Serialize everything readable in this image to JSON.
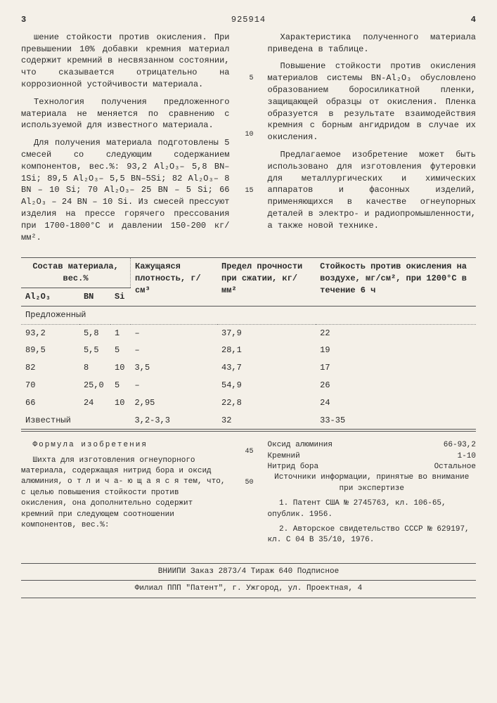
{
  "header": {
    "page_left": "3",
    "doc_number": "925914",
    "page_right": "4"
  },
  "left_column": {
    "p1": "шение стойкости против окисления. При превышении 10% добавки кремния материал содержит кремний в несвязанном состоянии, что сказывается отрицательно на коррозионной устойчивости материала.",
    "p2": "Технология получения предложенного материала не меняется по сравнению с используемой для известного материала.",
    "p3": "Для получения материала подготовлены 5 смесей со следующим содержанием компонентов, вес.%: 93,2 Al₂O₃– 5,8 BN–1Si; 89,5 Al₂O₃– 5,5 BN–5Si; 82 Al₂O₃– 8 BN – 10 Si; 70 Al₂O₃– 25 BN – 5 Si; 66 Al₂O₃ – 24 BN – 10 Si. Из смесей прессуют изделия на прессе горячего прессования при 1700-1800°С и давлении 150-200 кг/мм²."
  },
  "right_column": {
    "p1": "Характеристика полученного материала приведена в таблице.",
    "p2": "Повышение стойкости против окисления материалов системы BN-Al₂O₃ обусловлено образованием боросиликатной пленки, защищающей образцы от окисления. Пленка образуется в результате взаимодействия кремния с борным ангидридом в случае их окисления.",
    "p3": "Предлагаемое изобретение может быть использовано для изготовления футеровки для металлургических и химических аппаратов и фасонных изделий, применяющихся в качестве огнеупорных деталей в электро- и радиопромышленности, а также новой технике."
  },
  "line_markers": [
    "5",
    "10",
    "15"
  ],
  "table": {
    "headers": {
      "comp": "Состав материала, вес.%",
      "c1": "Al₂O₃",
      "c2": "BN",
      "c3": "Si",
      "density": "Кажущаяся плотность, г/см³",
      "strength": "Предел прочности при сжатии, кг/мм²",
      "oxid": "Стойкость против окисления на воздухе, мг/см², при 1200°С в течение 6 ч"
    },
    "section1": "Предложенный",
    "rows": [
      {
        "al": "93,2",
        "bn": "5,8",
        "si": "1",
        "d": "–",
        "s": "37,9",
        "o": "22"
      },
      {
        "al": "89,5",
        "bn": "5,5",
        "si": "5",
        "d": "–",
        "s": "28,1",
        "o": "19"
      },
      {
        "al": "82",
        "bn": "8",
        "si": "10",
        "d": "3,5",
        "s": "43,7",
        "o": "17"
      },
      {
        "al": "70",
        "bn": "25,0",
        "si": "5",
        "d": "–",
        "s": "54,9",
        "o": "26"
      },
      {
        "al": "66",
        "bn": "24",
        "si": "10",
        "d": "2,95",
        "s": "22,8",
        "o": "24"
      }
    ],
    "section2": "Известный",
    "known": {
      "al": "",
      "bn": "",
      "si": "",
      "d": "3,2-3,3",
      "s": "32",
      "o": "33-35"
    }
  },
  "formula": {
    "title": "Формула изобретения",
    "text": "Шихта для изготовления огнеупорного материала, содержащая нитрид бора и оксид алюминия, о т л и ч а- ю щ а я с я  тем, что, с целью повышения стойкости против окисления, она дополнительно содержит кремний при следующем соотношении компонентов, вес.%:",
    "components": [
      {
        "name": "Оксид алюминия",
        "val": "66-93,2"
      },
      {
        "name": "Кремний",
        "val": "1-10"
      },
      {
        "name": "Нитрид бора",
        "val": "Остальное"
      }
    ],
    "sources_title": "Источники информации, принятые во внимание при экспертизе",
    "s1": "1. Патент США № 2745763, кл. 106-65, опублик. 1956.",
    "s2": "2. Авторское свидетельство СССР № 629197, кл. С 04 В 35/10, 1976."
  },
  "line_markers2": [
    "45",
    "50"
  ],
  "footer": {
    "line1": "ВНИИПИ   Заказ 2873/4   Тираж 640   Подписное",
    "line2": "Филиал ППП \"Патент\", г. Ужгород, ул. Проектная, 4"
  }
}
